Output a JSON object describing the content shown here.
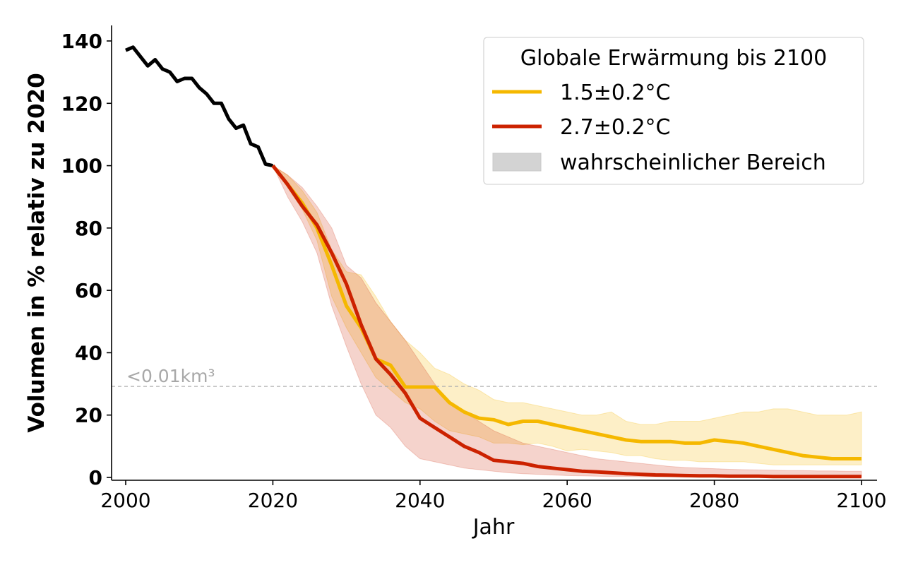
{
  "colors": {
    "historical": "#000000",
    "scenario_15": "#f5b800",
    "scenario_27": "#cc2200",
    "band_15": "#fde9a8",
    "band_27": "#eeaaa5",
    "likely_range": "#d3d3d3",
    "threshold_line": "#b0b0b0",
    "threshold_text": "#a8a8a8"
  },
  "chart_data": {
    "type": "line",
    "title": "",
    "xlabel": "Jahr",
    "ylabel": "Volumen in % relativ zu 2020",
    "xlim": [
      1998,
      2102
    ],
    "ylim": [
      -1,
      145
    ],
    "x_ticks": [
      2000,
      2020,
      2040,
      2060,
      2080,
      2100
    ],
    "y_ticks": [
      0,
      20,
      40,
      60,
      80,
      100,
      120,
      140
    ],
    "grid": false,
    "threshold": {
      "value": 29.2,
      "label": "<0.01km³"
    },
    "legend": {
      "title": "Globale Erwärmung bis 2100",
      "position": "top-right",
      "entries": [
        "1.5±0.2°C",
        "2.7±0.2°C",
        "wahrscheinlicher Bereich"
      ]
    },
    "historical": {
      "x": [
        2000,
        2001,
        2002,
        2003,
        2004,
        2005,
        2006,
        2007,
        2008,
        2009,
        2010,
        2011,
        2012,
        2013,
        2014,
        2015,
        2016,
        2017,
        2018,
        2019,
        2020
      ],
      "y": [
        137,
        138,
        135,
        132,
        134,
        131,
        130,
        127,
        128,
        128,
        125,
        123,
        120,
        120,
        115,
        112,
        113,
        107,
        106,
        100.5,
        100
      ]
    },
    "series": [
      {
        "name": "1.5±0.2°C",
        "x": [
          2020,
          2022,
          2024,
          2026,
          2028,
          2030,
          2032,
          2034,
          2036,
          2038,
          2040,
          2042,
          2044,
          2046,
          2048,
          2050,
          2052,
          2054,
          2056,
          2058,
          2060,
          2062,
          2064,
          2066,
          2068,
          2070,
          2072,
          2074,
          2076,
          2078,
          2080,
          2082,
          2084,
          2086,
          2088,
          2090,
          2092,
          2094,
          2096,
          2098,
          2100
        ],
        "y": [
          100,
          94,
          88,
          80,
          68,
          55,
          48,
          38,
          36,
          29,
          29,
          29,
          24,
          21,
          19,
          18.5,
          17,
          18,
          18,
          17,
          16,
          15,
          14,
          13,
          12,
          11.5,
          11.5,
          11.5,
          11,
          11,
          12,
          11.5,
          11,
          10,
          9,
          8,
          7,
          6.5,
          6,
          6,
          6
        ],
        "lower": [
          100,
          93,
          86,
          76,
          58,
          48,
          40,
          32,
          28,
          24,
          22,
          18,
          15,
          14,
          13,
          11,
          11,
          10.5,
          11,
          10,
          8.5,
          9,
          8.5,
          8,
          7,
          7,
          6,
          5.5,
          5.5,
          5,
          5,
          5,
          5,
          4.5,
          4,
          4,
          4,
          4,
          4,
          4,
          4
        ],
        "upper": [
          100,
          97,
          92,
          85,
          73,
          66,
          65,
          58,
          50,
          44,
          40,
          35,
          33,
          30,
          28,
          25,
          24,
          24,
          23,
          22,
          21,
          20,
          20,
          21,
          18,
          17,
          17,
          18,
          18,
          18,
          19,
          20,
          21,
          21,
          22,
          22,
          21,
          20,
          20,
          20,
          21
        ]
      },
      {
        "name": "2.7±0.2°C",
        "x": [
          2020,
          2022,
          2024,
          2026,
          2028,
          2030,
          2032,
          2034,
          2036,
          2038,
          2040,
          2042,
          2044,
          2046,
          2048,
          2050,
          2052,
          2054,
          2056,
          2058,
          2060,
          2062,
          2064,
          2066,
          2068,
          2070,
          2072,
          2074,
          2076,
          2078,
          2080,
          2082,
          2084,
          2086,
          2088,
          2090,
          2092,
          2094,
          2096,
          2098,
          2100
        ],
        "y": [
          100,
          94,
          87,
          81,
          72,
          62,
          49,
          38,
          33,
          27,
          19,
          16,
          13,
          10,
          8,
          5.5,
          5,
          4.5,
          3.5,
          3,
          2.5,
          2,
          1.8,
          1.5,
          1.2,
          1,
          0.8,
          0.7,
          0.6,
          0.5,
          0.5,
          0.4,
          0.4,
          0.4,
          0.3,
          0.3,
          0.3,
          0.3,
          0.3,
          0.3,
          0.3
        ],
        "lower": [
          100,
          90,
          82,
          72,
          55,
          42,
          30,
          20,
          16,
          10,
          6,
          5,
          4,
          3,
          2.5,
          2,
          1.5,
          1.2,
          1,
          0.8,
          0.6,
          0.5,
          0.4,
          0.3,
          0.3,
          0.2,
          0.2,
          0.2,
          0.2,
          0.2,
          0.2,
          0.2,
          0.2,
          0.2,
          0.2,
          0.2,
          0.2,
          0.2,
          0.2,
          0.2,
          0.2
        ],
        "upper": [
          100,
          97,
          93,
          87,
          80,
          68,
          64,
          56,
          50,
          44,
          37,
          30,
          24,
          21,
          18,
          15,
          13,
          11,
          10,
          9,
          8,
          7,
          6,
          5.5,
          5,
          4.5,
          4,
          3.5,
          3.2,
          3,
          2.8,
          2.6,
          2.5,
          2.4,
          2.3,
          2.2,
          2.2,
          2.1,
          2.1,
          2,
          2
        ]
      }
    ]
  }
}
